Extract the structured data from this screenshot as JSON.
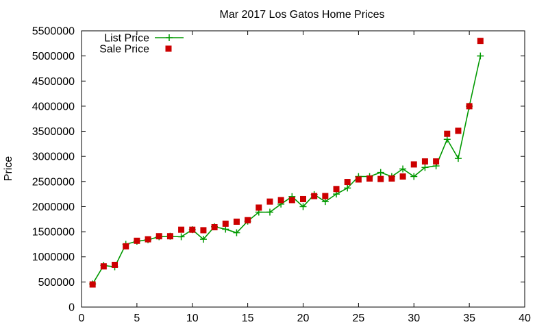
{
  "chart_data": {
    "type": "line",
    "title": "Mar 2017 Los Gatos Home Prices",
    "xlabel": "",
    "ylabel": "Price",
    "xlim": [
      0,
      40
    ],
    "ylim": [
      0,
      5500000
    ],
    "x_ticks": [
      0,
      5,
      10,
      15,
      20,
      25,
      30,
      35,
      40
    ],
    "y_ticks": [
      0,
      500000,
      1000000,
      1500000,
      2000000,
      2500000,
      3000000,
      3500000,
      4000000,
      4500000,
      5000000,
      5500000
    ],
    "grid": false,
    "legend_position": "top-left",
    "series": [
      {
        "name": "List Price",
        "style": "line-plus",
        "color": "#009900",
        "x": [
          1,
          2,
          3,
          4,
          5,
          6,
          7,
          8,
          9,
          10,
          11,
          12,
          13,
          14,
          15,
          16,
          17,
          18,
          19,
          20,
          21,
          22,
          23,
          24,
          25,
          26,
          27,
          28,
          29,
          30,
          31,
          32,
          33,
          34,
          35,
          36
        ],
        "values": [
          460000,
          830000,
          800000,
          1250000,
          1310000,
          1340000,
          1400000,
          1410000,
          1400000,
          1540000,
          1350000,
          1600000,
          1550000,
          1480000,
          1710000,
          1890000,
          1890000,
          2050000,
          2200000,
          2000000,
          2240000,
          2100000,
          2250000,
          2370000,
          2600000,
          2600000,
          2680000,
          2600000,
          2750000,
          2600000,
          2780000,
          2810000,
          3340000,
          2960000,
          4000000,
          5000000
        ]
      },
      {
        "name": "Sale Price",
        "style": "square",
        "color": "#cc0000",
        "x": [
          1,
          2,
          3,
          4,
          5,
          6,
          7,
          8,
          9,
          10,
          11,
          12,
          13,
          14,
          15,
          16,
          17,
          18,
          19,
          20,
          21,
          22,
          23,
          24,
          25,
          26,
          27,
          28,
          29,
          30,
          31,
          32,
          33,
          34,
          35,
          36
        ],
        "values": [
          450000,
          810000,
          840000,
          1210000,
          1320000,
          1350000,
          1410000,
          1410000,
          1540000,
          1540000,
          1530000,
          1590000,
          1660000,
          1700000,
          1730000,
          1980000,
          2100000,
          2130000,
          2130000,
          2150000,
          2210000,
          2210000,
          2350000,
          2490000,
          2540000,
          2560000,
          2550000,
          2560000,
          2600000,
          2840000,
          2900000,
          2900000,
          3450000,
          3510000,
          4000000,
          5300000
        ]
      }
    ]
  }
}
